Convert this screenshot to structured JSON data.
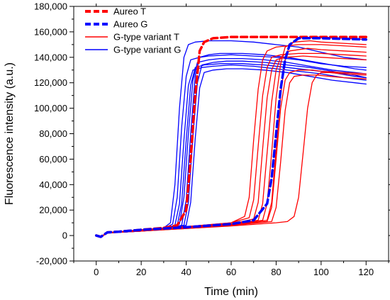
{
  "chart_data": {
    "type": "line",
    "xlabel": "Time (min)",
    "ylabel": "Fluorescence intensity (a.u.)",
    "xlim": [
      -10,
      130
    ],
    "ylim": [
      -20000,
      180000
    ],
    "x_ticks": [
      0,
      20,
      40,
      60,
      80,
      100,
      120
    ],
    "x_tick_labels": [
      "0",
      "20",
      "40",
      "60",
      "80",
      "100",
      "120"
    ],
    "y_ticks": [
      -20000,
      0,
      20000,
      40000,
      60000,
      80000,
      100000,
      120000,
      140000,
      160000,
      180000
    ],
    "y_tick_labels": [
      "-20,000",
      "0",
      "20,000",
      "40,000",
      "60,000",
      "80,000",
      "100,000",
      "120,000",
      "140,000",
      "160,000",
      "180,000"
    ],
    "grid": false,
    "legend_position": "top-left",
    "legend": [
      {
        "label": "Aureo T",
        "color": "#ff0000",
        "style": "dashed"
      },
      {
        "label": "Aureo G",
        "color": "#0000ff",
        "style": "dashed"
      },
      {
        "label": "G-type variant T",
        "color": "#ff0000",
        "style": "solid"
      },
      {
        "label": "G-type variant G",
        "color": "#0000ff",
        "style": "solid"
      }
    ],
    "series": [
      {
        "group": "Aureo T",
        "color": "#ff0000",
        "dashed": true,
        "x": [
          0,
          2,
          5,
          10,
          20,
          30,
          36,
          40,
          42,
          44,
          46,
          48,
          52,
          60,
          80,
          100,
          120
        ],
        "y": [
          0,
          -1000,
          2500,
          3000,
          4500,
          6000,
          8000,
          20000,
          60000,
          110000,
          145000,
          152000,
          155000,
          156000,
          156000,
          156000,
          156000
        ]
      },
      {
        "group": "Aureo G",
        "color": "#0000ff",
        "dashed": true,
        "x": [
          0,
          2,
          5,
          10,
          20,
          40,
          60,
          70,
          76,
          78,
          80,
          82,
          84,
          86,
          90,
          100,
          120
        ],
        "y": [
          0,
          -1000,
          2500,
          3000,
          4500,
          6500,
          9000,
          12000,
          25000,
          45000,
          80000,
          115000,
          138000,
          150000,
          155000,
          155000,
          154000
        ]
      },
      {
        "group": "G-type variant G",
        "color": "#0000ff",
        "dashed": false,
        "x": [
          0,
          2,
          5,
          10,
          20,
          30,
          33,
          35,
          37,
          39,
          41,
          44,
          50,
          60,
          70,
          80,
          90,
          100,
          110,
          120
        ],
        "y": [
          0,
          -1500,
          2500,
          3000,
          4500,
          6000,
          10000,
          40000,
          100000,
          140000,
          150000,
          152000,
          153000,
          153000,
          152000,
          150000,
          148000,
          144000,
          140000,
          138000
        ]
      },
      {
        "group": "G-type variant G",
        "color": "#0000ff",
        "dashed": false,
        "x": [
          0,
          2,
          5,
          10,
          20,
          30,
          34,
          36,
          38,
          40,
          42,
          46,
          50,
          60,
          70,
          80,
          90,
          100,
          110,
          120
        ],
        "y": [
          0,
          -1000,
          2000,
          3000,
          4000,
          5500,
          9000,
          30000,
          85000,
          125000,
          138000,
          140000,
          141000,
          142000,
          141000,
          140000,
          138000,
          135000,
          133000,
          132000
        ]
      },
      {
        "group": "G-type variant G",
        "color": "#0000ff",
        "dashed": false,
        "x": [
          0,
          2,
          5,
          10,
          20,
          30,
          35,
          37,
          39,
          41,
          43,
          47,
          52,
          60,
          70,
          80,
          90,
          100,
          110,
          120
        ],
        "y": [
          0,
          -1000,
          2000,
          3000,
          4000,
          5500,
          8000,
          25000,
          75000,
          118000,
          130000,
          132000,
          133000,
          134000,
          133000,
          131000,
          129000,
          127000,
          124000,
          122000
        ]
      },
      {
        "group": "G-type variant G",
        "color": "#0000ff",
        "dashed": false,
        "x": [
          0,
          2,
          5,
          10,
          20,
          30,
          36,
          38,
          40,
          42,
          44,
          48,
          55,
          65,
          75,
          85,
          95,
          105,
          115,
          120
        ],
        "y": [
          0,
          -1000,
          2000,
          2500,
          3500,
          5000,
          8000,
          25000,
          75000,
          118000,
          132000,
          134000,
          135000,
          135000,
          134000,
          132000,
          130000,
          128000,
          125000,
          124000
        ]
      },
      {
        "group": "G-type variant G",
        "color": "#0000ff",
        "dashed": false,
        "x": [
          0,
          2,
          5,
          10,
          20,
          30,
          37,
          39,
          41,
          43,
          45,
          50,
          55,
          65,
          75,
          85,
          95,
          105,
          115,
          120
        ],
        "y": [
          0,
          -1000,
          2000,
          2500,
          3500,
          5000,
          9000,
          30000,
          80000,
          122000,
          136000,
          138000,
          139000,
          139000,
          138000,
          136000,
          133000,
          130000,
          128000,
          127000
        ]
      },
      {
        "group": "G-type variant G",
        "color": "#0000ff",
        "dashed": false,
        "x": [
          0,
          2,
          5,
          10,
          20,
          30,
          38,
          40,
          42,
          44,
          46,
          50,
          55,
          65,
          75,
          85,
          95,
          105,
          115,
          120
        ],
        "y": [
          0,
          -1000,
          2000,
          2500,
          3500,
          5000,
          8000,
          28000,
          80000,
          125000,
          140000,
          142000,
          143000,
          143000,
          142000,
          140000,
          137000,
          134000,
          131000,
          130000
        ]
      },
      {
        "group": "G-type variant G",
        "color": "#0000ff",
        "dashed": false,
        "x": [
          0,
          2,
          5,
          10,
          20,
          30,
          39,
          41,
          43,
          45,
          47,
          52,
          58,
          65,
          75,
          85,
          95,
          105,
          115,
          120
        ],
        "y": [
          0,
          -1000,
          2000,
          2500,
          3500,
          5000,
          8000,
          26000,
          78000,
          120000,
          134000,
          136000,
          137000,
          137000,
          136000,
          134000,
          132000,
          129000,
          126000,
          124000
        ]
      },
      {
        "group": "G-type variant G",
        "color": "#0000ff",
        "dashed": false,
        "x": [
          0,
          2,
          5,
          10,
          20,
          30,
          40,
          42,
          44,
          46,
          48,
          52,
          58,
          65,
          75,
          85,
          95,
          105,
          115,
          120
        ],
        "y": [
          0,
          -1000,
          2000,
          2500,
          3500,
          5000,
          8000,
          26000,
          76000,
          116000,
          128000,
          130000,
          131000,
          131000,
          130000,
          128000,
          125000,
          122000,
          120000,
          119000
        ]
      },
      {
        "group": "G-type variant T",
        "color": "#ff0000",
        "dashed": false,
        "x": [
          0,
          2,
          5,
          10,
          20,
          40,
          60,
          66,
          68,
          70,
          72,
          74,
          76,
          80,
          90,
          100,
          110,
          120
        ],
        "y": [
          0,
          -1000,
          2500,
          3000,
          4500,
          7000,
          10000,
          15000,
          30000,
          75000,
          115000,
          138000,
          145000,
          148000,
          150000,
          150000,
          149000,
          148000
        ]
      },
      {
        "group": "G-type variant T",
        "color": "#ff0000",
        "dashed": false,
        "x": [
          0,
          2,
          5,
          10,
          20,
          40,
          60,
          68,
          70,
          72,
          74,
          76,
          78,
          82,
          90,
          100,
          110,
          120
        ],
        "y": [
          0,
          -1000,
          2500,
          3000,
          4500,
          7000,
          10000,
          14000,
          28000,
          70000,
          110000,
          132000,
          140000,
          142000,
          143000,
          143000,
          142000,
          141000
        ]
      },
      {
        "group": "G-type variant T",
        "color": "#ff0000",
        "dashed": false,
        "x": [
          0,
          2,
          5,
          10,
          20,
          40,
          60,
          70,
          72,
          74,
          76,
          78,
          80,
          84,
          92,
          100,
          110,
          120
        ],
        "y": [
          0,
          -1000,
          2000,
          3000,
          4000,
          6500,
          9000,
          13000,
          26000,
          68000,
          108000,
          130000,
          138000,
          140000,
          141000,
          140000,
          139000,
          138000
        ]
      },
      {
        "group": "G-type variant T",
        "color": "#ff0000",
        "dashed": false,
        "x": [
          0,
          2,
          5,
          10,
          20,
          40,
          60,
          72,
          74,
          76,
          78,
          80,
          82,
          86,
          94,
          100,
          110,
          120
        ],
        "y": [
          0,
          -1000,
          2000,
          3000,
          4000,
          6500,
          9000,
          12000,
          25000,
          65000,
          105000,
          130000,
          140000,
          145000,
          147000,
          146000,
          145000,
          144000
        ]
      },
      {
        "group": "G-type variant T",
        "color": "#ff0000",
        "dashed": false,
        "x": [
          0,
          2,
          5,
          10,
          20,
          40,
          60,
          74,
          76,
          78,
          80,
          82,
          84,
          88,
          95,
          100,
          110,
          120
        ],
        "y": [
          0,
          -1000,
          2000,
          3000,
          4000,
          6000,
          8500,
          12000,
          25000,
          65000,
          108000,
          135000,
          148000,
          152000,
          153000,
          152000,
          151000,
          150000
        ]
      },
      {
        "group": "G-type variant T",
        "color": "#ff0000",
        "dashed": false,
        "x": [
          0,
          2,
          5,
          10,
          20,
          40,
          60,
          76,
          78,
          80,
          82,
          84,
          86,
          90,
          96,
          100,
          110,
          120
        ],
        "y": [
          0,
          -1000,
          2000,
          3000,
          4000,
          6000,
          8500,
          12000,
          26000,
          68000,
          110000,
          138000,
          150000,
          155000,
          156000,
          156000,
          155000,
          154000
        ]
      },
      {
        "group": "G-type variant T",
        "color": "#ff0000",
        "dashed": false,
        "x": [
          0,
          2,
          5,
          10,
          20,
          40,
          60,
          76,
          78,
          80,
          82,
          84,
          86,
          90,
          96,
          100,
          110,
          120
        ],
        "y": [
          0,
          -1000,
          2000,
          3000,
          4000,
          6000,
          8500,
          11000,
          22000,
          60000,
          100000,
          122000,
          128000,
          130000,
          130000,
          129000,
          128000,
          127000
        ]
      },
      {
        "group": "G-type variant T",
        "color": "#ff0000",
        "dashed": false,
        "x": [
          0,
          2,
          5,
          10,
          20,
          40,
          60,
          78,
          80,
          82,
          84,
          86,
          88,
          92,
          98,
          104,
          110,
          120
        ],
        "y": [
          0,
          -1000,
          2000,
          2500,
          3500,
          5500,
          8000,
          11000,
          22000,
          58000,
          98000,
          120000,
          125000,
          126000,
          126000,
          125000,
          124000,
          123000
        ]
      },
      {
        "group": "G-type variant T",
        "color": "#ff0000",
        "dashed": false,
        "x": [
          0,
          2,
          5,
          10,
          20,
          40,
          60,
          80,
          85,
          88,
          90,
          92,
          94,
          96,
          98,
          100,
          104,
          110,
          120
        ],
        "y": [
          0,
          -1000,
          2000,
          2500,
          3500,
          5500,
          7500,
          10000,
          11000,
          15000,
          30000,
          65000,
          100000,
          120000,
          126000,
          128000,
          128000,
          127000,
          126000
        ]
      }
    ]
  }
}
